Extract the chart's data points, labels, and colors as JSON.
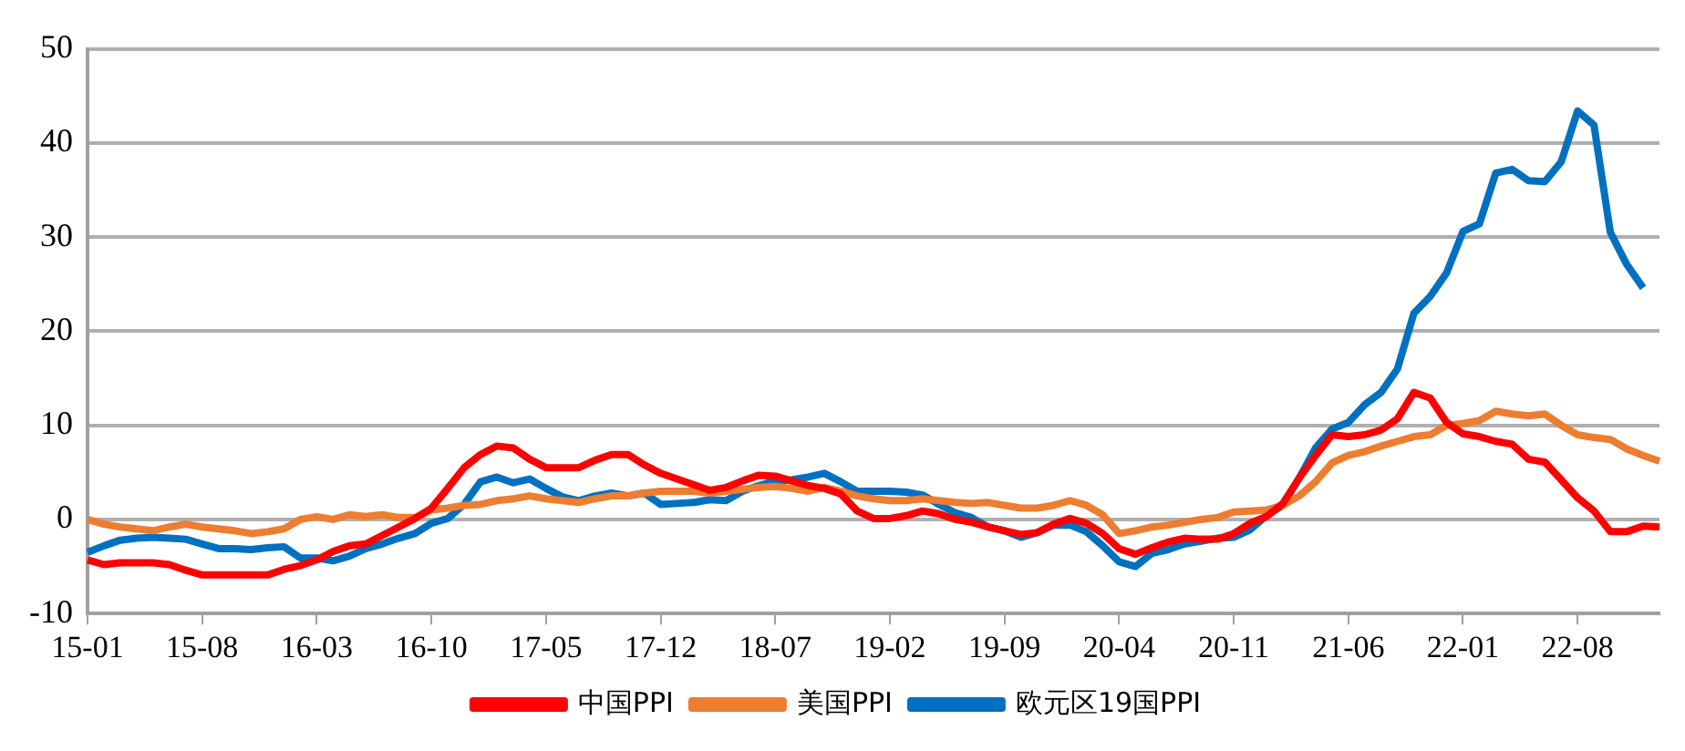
{
  "chart_data": {
    "type": "line",
    "categories": [
      "15-01",
      null,
      null,
      null,
      null,
      null,
      null,
      "15-08",
      null,
      null,
      null,
      null,
      null,
      null,
      "16-03",
      null,
      null,
      null,
      null,
      null,
      null,
      "16-10",
      null,
      null,
      null,
      null,
      null,
      null,
      "17-05",
      null,
      null,
      null,
      null,
      null,
      null,
      "17-12",
      null,
      null,
      null,
      null,
      null,
      null,
      "18-07",
      null,
      null,
      null,
      null,
      null,
      null,
      "19-02",
      null,
      null,
      null,
      null,
      null,
      null,
      "19-09",
      null,
      null,
      null,
      null,
      null,
      null,
      "20-04",
      null,
      null,
      null,
      null,
      null,
      null,
      "20-11",
      null,
      null,
      null,
      null,
      null,
      null,
      "21-06",
      null,
      null,
      null,
      null,
      null,
      null,
      "22-01",
      null,
      null,
      null,
      null,
      null,
      null,
      "22-08",
      null,
      null,
      null,
      null,
      null
    ],
    "series": [
      {
        "name": "中国PPI",
        "color": "#ff0000",
        "values": [
          -4.3,
          -4.8,
          -4.6,
          -4.6,
          -4.6,
          -4.8,
          -5.4,
          -5.9,
          -5.9,
          -5.9,
          -5.9,
          -5.9,
          -5.3,
          -4.9,
          -4.3,
          -3.4,
          -2.8,
          -2.6,
          -1.7,
          -0.8,
          0.1,
          1.2,
          3.3,
          5.5,
          6.9,
          7.8,
          7.6,
          6.4,
          5.5,
          5.5,
          5.5,
          6.3,
          6.9,
          6.9,
          5.8,
          4.9,
          4.3,
          3.7,
          3.1,
          3.4,
          4.1,
          4.7,
          4.6,
          4.1,
          3.6,
          3.3,
          2.7,
          0.9,
          0.1,
          0.1,
          0.4,
          0.9,
          0.6,
          0,
          -0.3,
          -0.8,
          -1.2,
          -1.6,
          -1.4,
          -0.5,
          0.1,
          -0.4,
          -1.5,
          -3.1,
          -3.7,
          -3.0,
          -2.4,
          -2.0,
          -2.1,
          -2.1,
          -1.5,
          -0.4,
          0.3,
          1.7,
          4.4,
          6.8,
          9.0,
          8.8,
          9.0,
          9.5,
          10.7,
          13.5,
          12.9,
          10.3,
          9.1,
          8.8,
          8.3,
          8.0,
          6.4,
          6.1,
          4.2,
          2.3,
          0.9,
          -1.3,
          -1.3,
          -0.7,
          -0.8
        ]
      },
      {
        "name": "美国PPI",
        "color": "#ed7d31",
        "values": [
          0,
          -0.5,
          -0.8,
          -1,
          -1.2,
          -0.8,
          -0.5,
          -0.8,
          -1,
          -1.2,
          -1.5,
          -1.3,
          -1,
          0,
          0.3,
          0,
          0.5,
          0.3,
          0.5,
          0.2,
          0.2,
          1,
          1.2,
          1.5,
          1.6,
          2,
          2.2,
          2.5,
          2.2,
          2,
          1.8,
          2.2,
          2.5,
          2.5,
          2.8,
          3,
          3,
          3,
          2.8,
          3,
          3.2,
          3.4,
          3.5,
          3.3,
          3,
          3.4,
          3,
          2.5,
          2.2,
          2,
          2,
          2.2,
          2,
          1.8,
          1.7,
          1.8,
          1.5,
          1.2,
          1.2,
          1.5,
          2,
          1.5,
          0.5,
          -1.5,
          -1.2,
          -0.8,
          -0.6,
          -0.3,
          0,
          0.2,
          0.8,
          0.9,
          1,
          1.5,
          2.5,
          4,
          6,
          6.8,
          7.2,
          7.8,
          8.3,
          8.8,
          9,
          10,
          10.2,
          10.5,
          11.5,
          11.2,
          11,
          11.2,
          10,
          9,
          8.7,
          8.5,
          7.5,
          6.8,
          6.2
        ]
      },
      {
        "name": "欧元区19国PPI",
        "color": "#0070c0",
        "values": [
          -3.5,
          -2.8,
          -2.2,
          -2.0,
          -1.9,
          -2.0,
          -2.1,
          -2.6,
          -3.1,
          -3.1,
          -3.2,
          -3.0,
          -2.9,
          -4.1,
          -4.1,
          -4.4,
          -3.9,
          -3.1,
          -2.6,
          -2.0,
          -1.5,
          -0.4,
          0.1,
          1.6,
          4.0,
          4.5,
          3.9,
          4.3,
          3.3,
          2.4,
          2.0,
          2.5,
          2.8,
          2.5,
          2.8,
          1.6,
          1.7,
          1.8,
          2.1,
          2.0,
          3.0,
          3.6,
          4.1,
          4.2,
          4.5,
          4.9,
          4.0,
          3.0,
          3.0,
          3.0,
          2.9,
          2.6,
          1.6,
          0.7,
          0.2,
          -0.8,
          -1.2,
          -1.9,
          -1.4,
          -0.6,
          -0.6,
          -1.3,
          -2.8,
          -4.5,
          -5.0,
          -3.6,
          -3.2,
          -2.6,
          -2.3,
          -2.0,
          -1.9,
          -1.1,
          0.4,
          1.5,
          4.4,
          7.6,
          9.6,
          10.3,
          12.2,
          13.5,
          16.0,
          21.9,
          23.7,
          26.2,
          30.6,
          31.4,
          36.8,
          37.2,
          36.0,
          35.9,
          38.0,
          43.4,
          41.9,
          30.5,
          27.1,
          24.6,
          null
        ]
      }
    ],
    "ylim": [
      -10,
      50
    ],
    "yticks": [
      -10,
      0,
      10,
      20,
      30,
      40,
      50
    ],
    "grid": "y",
    "legend": "bottom",
    "marker": "none",
    "line_style": "solid"
  }
}
